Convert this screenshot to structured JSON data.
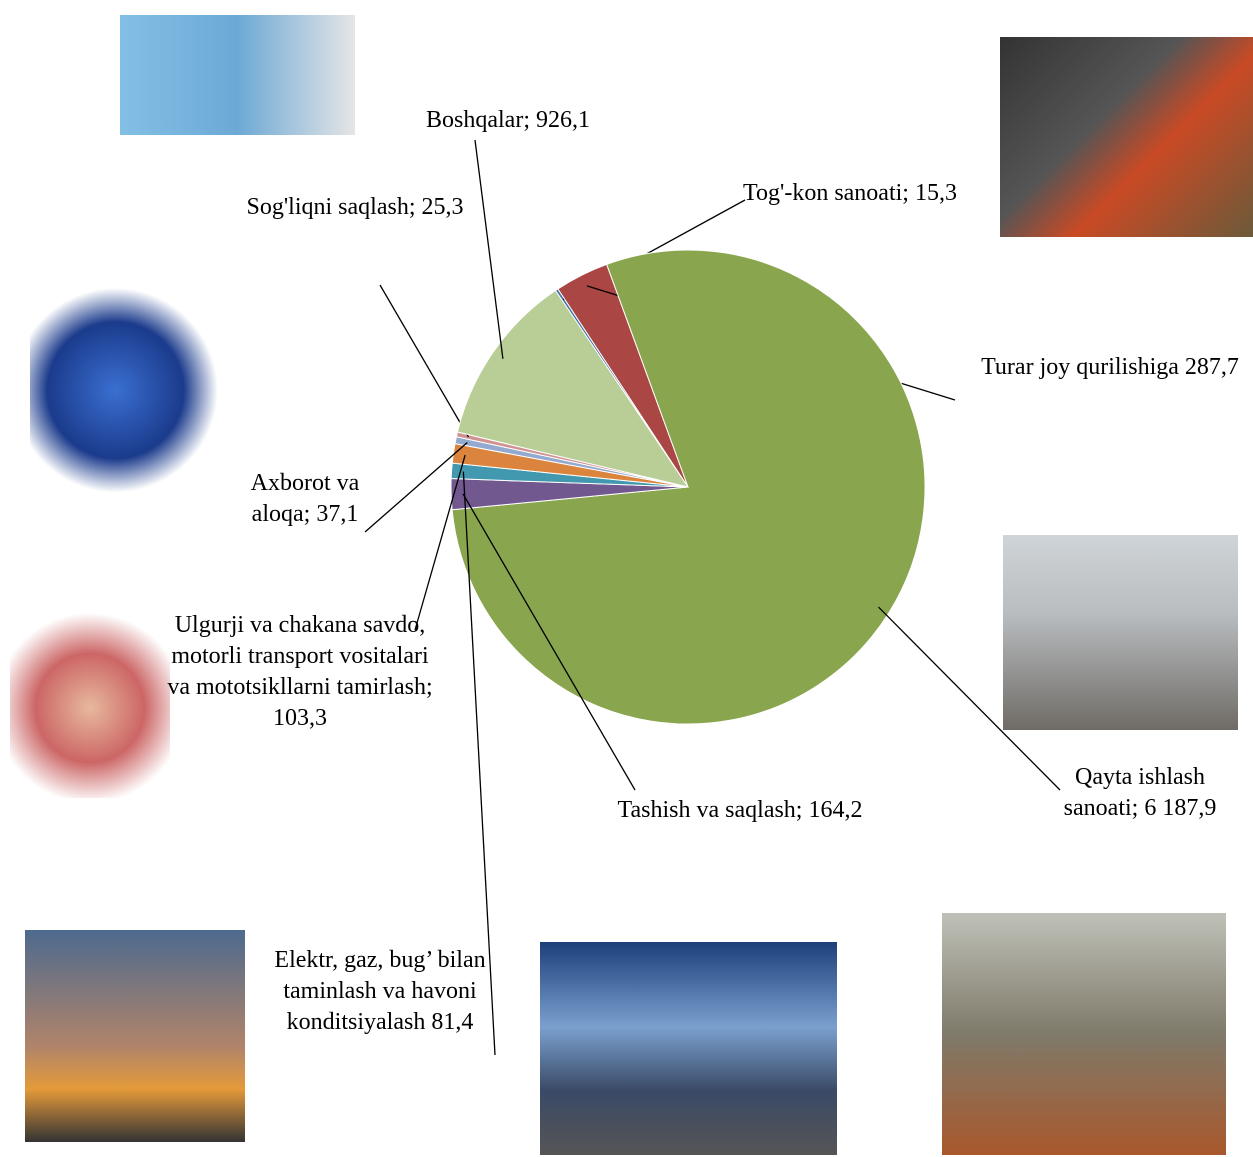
{
  "chart_data": {
    "type": "pie",
    "categories": [
      "Tog'-kon sanoati;",
      "Turar joy qurilishiga",
      "Qayta ishlash sanoati;",
      "Tashish va saqlash;",
      "Elektr, gaz, bug’ bilan taminlash va havoni konditsiyalash",
      "Ulgurji va chakana savdo, motorli transport vositalari va mototsikllarni tamirlash;",
      "Axborot va aloqa;",
      "Sog'liqni saqlash;",
      "Boshqalar;"
    ],
    "values": [
      15.3,
      287.7,
      6187.9,
      164.2,
      81.4,
      103.3,
      37.1,
      25.3,
      926.1
    ],
    "value_labels": [
      "15,3",
      "287,7",
      "6 187,9",
      "164,2",
      "81,4",
      "103,3",
      "37,1",
      "25,3",
      "926,1"
    ],
    "colors": [
      "#4572a7",
      "#aa4643",
      "#89a54e",
      "#71588f",
      "#4198af",
      "#db843d",
      "#93a9cf",
      "#d19392",
      "#b9cd96"
    ]
  }
}
